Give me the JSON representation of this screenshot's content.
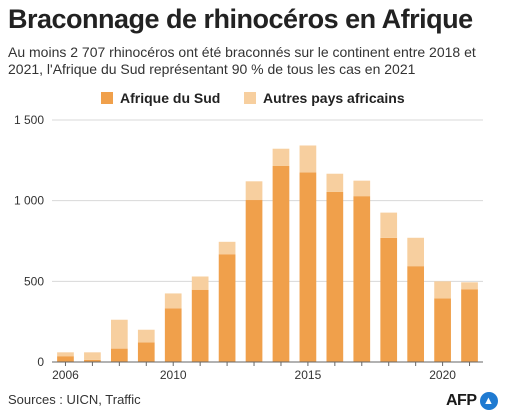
{
  "title": "Braconnage de rhinocéros en Afrique",
  "subtitle": "Au moins 2 707 rhinocéros ont été braconnés sur le continent entre 2018 et 2021, l'Afrique du Sud représentant 90 % de tous les cas en 2021",
  "source": "Sources : UICN, Traffic",
  "logo": {
    "text": "AFP"
  },
  "chart_data": {
    "type": "bar",
    "stacked": true,
    "title": "Braconnage de rhinocéros en Afrique",
    "subtitle": "Au moins 2 707 rhinocéros ont été braconnés sur le continent entre 2018 et 2021, l'Afrique du Sud représentant 90 % de tous les cas en 2021",
    "xlabel": "",
    "ylabel": "",
    "x": [
      2006,
      2007,
      2008,
      2009,
      2010,
      2011,
      2012,
      2013,
      2014,
      2015,
      2016,
      2017,
      2018,
      2019,
      2020,
      2021
    ],
    "x_ticks": [
      "2006",
      "2010",
      "2015",
      "2020"
    ],
    "y_ticks": [
      "0",
      "500",
      "1 000",
      "1 500"
    ],
    "y_tick_values": [
      0,
      500,
      1000,
      1500
    ],
    "ylim": [
      0,
      1500
    ],
    "grid": true,
    "legend_position": "top",
    "series": [
      {
        "name": "Afrique du Sud",
        "color": "#f0a04b",
        "values": [
          36,
          13,
          83,
          122,
          333,
          448,
          668,
          1004,
          1215,
          1175,
          1054,
          1028,
          769,
          594,
          394,
          451
        ]
      },
      {
        "name": "Autres pays africains",
        "color": "#f7cf9f",
        "values": [
          24,
          47,
          179,
          78,
          92,
          82,
          77,
          116,
          107,
          167,
          113,
          96,
          157,
          176,
          106,
          43
        ]
      }
    ]
  }
}
